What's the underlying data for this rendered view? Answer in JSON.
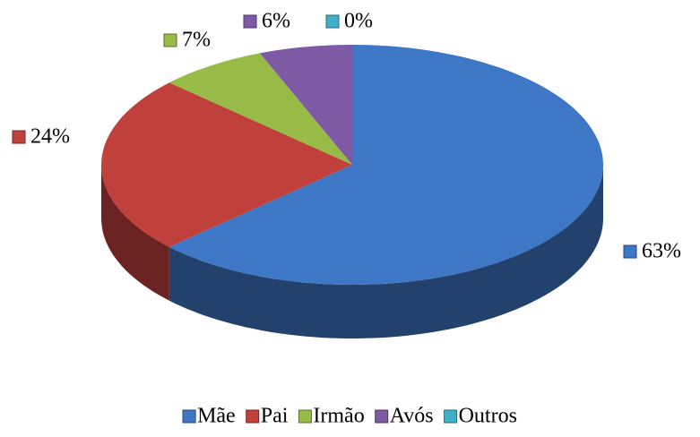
{
  "chart_data": {
    "type": "pie",
    "categories": [
      "Mãe",
      "Pai",
      "Irmão",
      "Avós",
      "Outros"
    ],
    "values": [
      63,
      24,
      7,
      6,
      0
    ],
    "value_labels": [
      "63%",
      "24%",
      "7%",
      "6%",
      "0%"
    ],
    "colors": [
      "#3d77c6",
      "#c0403c",
      "#98bb48",
      "#7d5aa3",
      "#3fb0c8"
    ],
    "legend": "bottom"
  }
}
